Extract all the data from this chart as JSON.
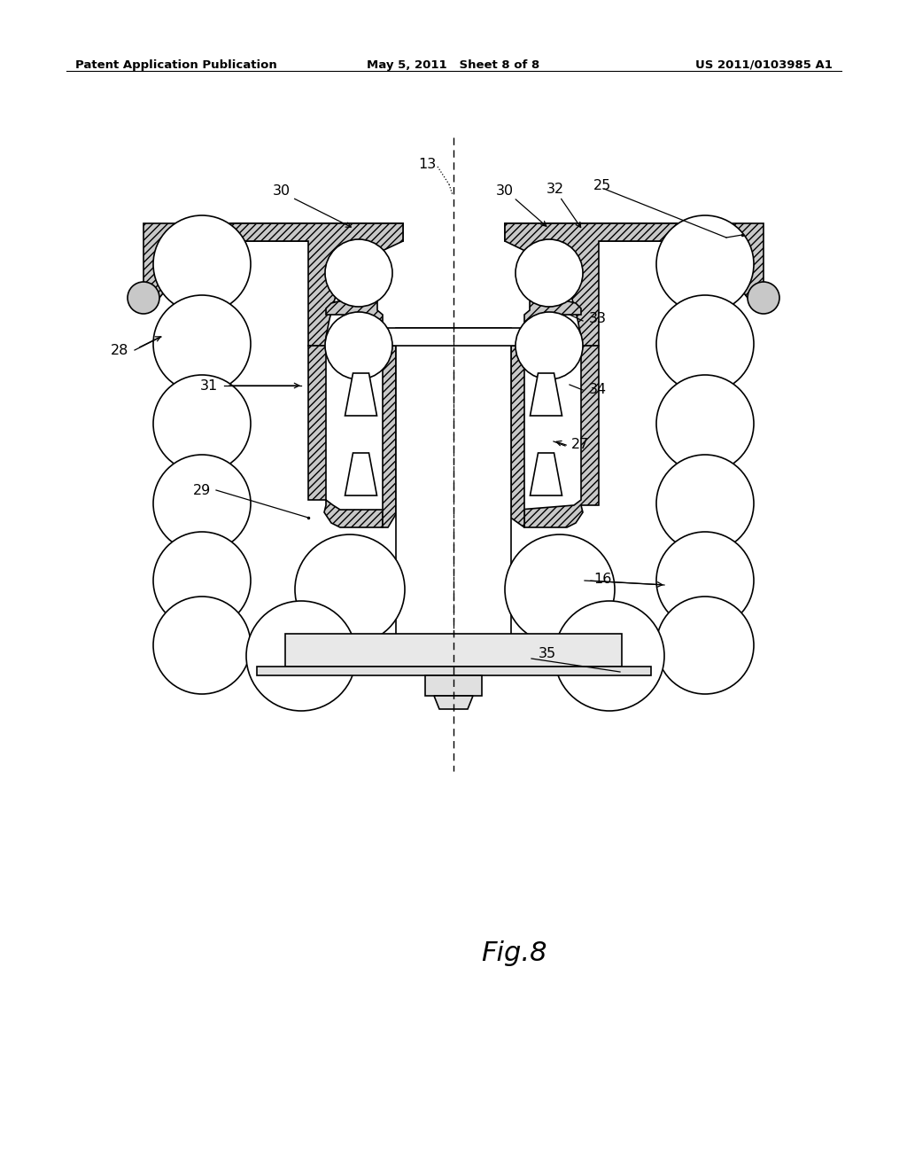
{
  "header_left": "Patent Application Publication",
  "header_mid": "May 5, 2011   Sheet 8 of 8",
  "header_right": "US 2011/0103985 A1",
  "fig_label": "Fig.8",
  "background": "#ffffff"
}
